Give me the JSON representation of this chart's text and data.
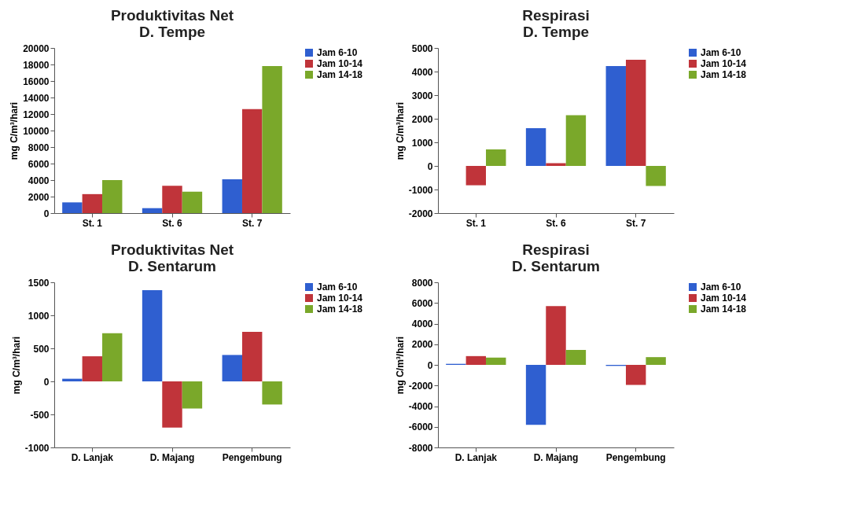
{
  "chart_data": [
    {
      "type": "bar",
      "title": [
        "Produktivitas Net",
        "D. Tempe"
      ],
      "ylabel": "mg C/m³/hari",
      "categories": [
        "St. 1",
        "St. 6",
        "St. 7"
      ],
      "ylim": [
        0,
        20000
      ],
      "yticks": [
        0,
        2000,
        4000,
        6000,
        8000,
        10000,
        12000,
        14000,
        16000,
        18000,
        20000
      ],
      "legend": "right",
      "series": [
        {
          "name": "Jam 6-10",
          "color": "#2f5fd0",
          "values": [
            1300,
            600,
            4100
          ]
        },
        {
          "name": "Jam 10-14",
          "color": "#c0343a",
          "values": [
            2300,
            3300,
            12600
          ]
        },
        {
          "name": "Jam 14-18",
          "color": "#7aa82a",
          "values": [
            4000,
            2600,
            17800
          ]
        }
      ]
    },
    {
      "type": "bar",
      "title": [
        "Respirasi",
        "D. Tempe"
      ],
      "ylabel": "mg C/m³/hari",
      "categories": [
        "St. 1",
        "St. 6",
        "St. 7"
      ],
      "ylim": [
        -2000,
        5000
      ],
      "yticks": [
        -2000,
        -1000,
        0,
        1000,
        2000,
        3000,
        4000,
        5000
      ],
      "legend": "right",
      "series": [
        {
          "name": "Jam 6-10",
          "color": "#2f5fd0",
          "values": [
            0,
            1600,
            4230
          ]
        },
        {
          "name": "Jam 10-14",
          "color": "#c0343a",
          "values": [
            -820,
            120,
            4500
          ]
        },
        {
          "name": "Jam 14-18",
          "color": "#7aa82a",
          "values": [
            700,
            2150,
            -850
          ]
        }
      ]
    },
    {
      "type": "bar",
      "title": [
        "Produktivitas Net",
        "D. Sentarum"
      ],
      "ylabel": "mg C/m³/hari",
      "categories": [
        "D. Lanjak",
        "D. Majang",
        "Pengembung"
      ],
      "ylim": [
        -1000,
        1500
      ],
      "yticks": [
        -1000,
        -500,
        0,
        500,
        1000,
        1500
      ],
      "legend": "right",
      "series": [
        {
          "name": "Jam 6-10",
          "color": "#2f5fd0",
          "values": [
            40,
            1380,
            400
          ]
        },
        {
          "name": "Jam 10-14",
          "color": "#c0343a",
          "values": [
            380,
            -700,
            750
          ]
        },
        {
          "name": "Jam 14-18",
          "color": "#7aa82a",
          "values": [
            730,
            -410,
            -350
          ]
        }
      ]
    },
    {
      "type": "bar",
      "title": [
        "Respirasi",
        "D. Sentarum"
      ],
      "ylabel": "mg C/m³/hari",
      "categories": [
        "D. Lanjak",
        "D. Majang",
        "Pengembung"
      ],
      "ylim": [
        -8000,
        8000
      ],
      "yticks": [
        -8000,
        -6000,
        -4000,
        -2000,
        0,
        2000,
        4000,
        6000,
        8000
      ],
      "legend": "right",
      "series": [
        {
          "name": "Jam 6-10",
          "color": "#2f5fd0",
          "values": [
            100,
            -5800,
            -100
          ]
        },
        {
          "name": "Jam 10-14",
          "color": "#c0343a",
          "values": [
            850,
            5700,
            -1950
          ]
        },
        {
          "name": "Jam 14-18",
          "color": "#7aa82a",
          "values": [
            700,
            1450,
            750
          ]
        }
      ]
    }
  ]
}
